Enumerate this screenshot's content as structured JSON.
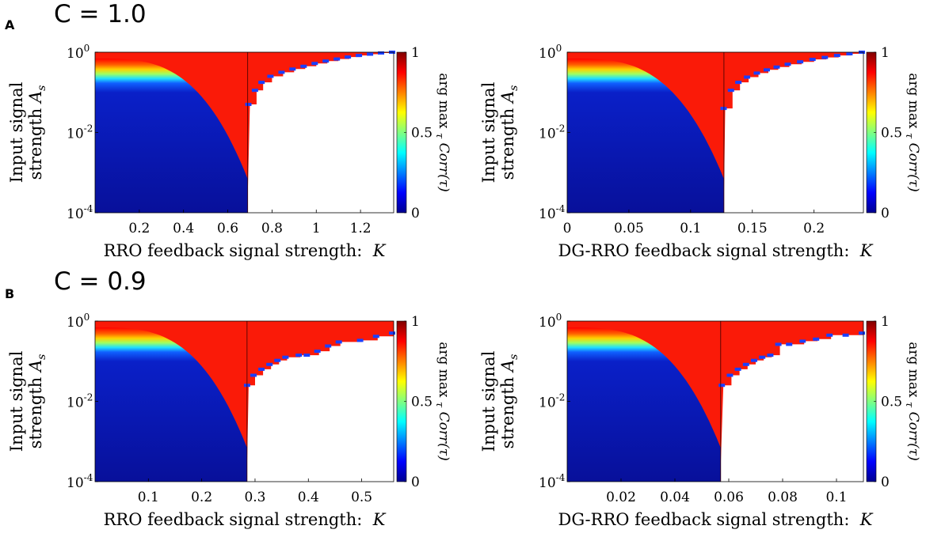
{
  "panels": [
    {
      "letter": "A",
      "condition": "C = 1.0"
    },
    {
      "letter": "B",
      "condition": "C = 0.9"
    }
  ],
  "colors": {
    "cmap": [
      "#00008f",
      "#0000ff",
      "#0080ff",
      "#00ffff",
      "#80ff80",
      "#ffff00",
      "#ff8000",
      "#ff0000",
      "#800000"
    ],
    "low": "#08109a",
    "high": "#fa1a08",
    "empty": "#ffffff"
  },
  "chart_data": [
    {
      "type": "heatmap",
      "title": "C = 1.0",
      "xlabel": "RRO feedback signal strength:",
      "xlabel_symbol": "K",
      "ylabel_line1": "Input signal",
      "ylabel_line2": "strength",
      "ylabel_symbol": "A",
      "ylabel_sub": "s",
      "colorbar_label": "arg max",
      "colorbar_sub": "τ",
      "colorbar_expr": "Corr(τ)",
      "xlim": [
        0,
        1.35
      ],
      "ylog_range": [
        -4,
        0
      ],
      "xticks": [
        0.2,
        0.4,
        0.6,
        0.8,
        1,
        1.2
      ],
      "xtick_labels": [
        "0.2",
        "0.4",
        "0.6",
        "0.8",
        "1",
        "1.2"
      ],
      "yticks": [
        0,
        -2,
        -4
      ],
      "ytick_base": "10",
      "ytick_exps": [
        "0",
        "-2",
        "-4"
      ],
      "colorbar_ticks": [
        1,
        0.5,
        0
      ],
      "colorbar_tick_labels": [
        "1",
        "0.5",
        "0"
      ],
      "critical_K": 0.69,
      "boundary_K": [
        0.7,
        0.73,
        0.76,
        0.8,
        0.85,
        0.9,
        0.95,
        1.0,
        1.05,
        1.1,
        1.15,
        1.2,
        1.25,
        1.3,
        1.35
      ],
      "boundary_log10A": [
        -1.3,
        -0.95,
        -0.75,
        -0.6,
        -0.5,
        -0.42,
        -0.35,
        -0.28,
        -0.22,
        -0.17,
        -0.12,
        -0.08,
        -0.05,
        -0.02,
        0
      ]
    },
    {
      "type": "heatmap",
      "title": "C = 1.0",
      "xlabel": "DG-RRO feedback signal strength:",
      "xlabel_symbol": "K",
      "ylabel_line1": "Input signal",
      "ylabel_line2": "strength",
      "ylabel_symbol": "A",
      "ylabel_sub": "s",
      "colorbar_label": "arg max",
      "colorbar_sub": "τ",
      "colorbar_expr": "Corr(τ)",
      "xlim": [
        0,
        0.24
      ],
      "ylog_range": [
        -4,
        0
      ],
      "xticks": [
        0,
        0.05,
        0.1,
        0.15,
        0.2
      ],
      "xtick_labels": [
        "0",
        "0.05",
        "0.1",
        "0.15",
        "0.2"
      ],
      "yticks": [
        0,
        -2,
        -4
      ],
      "ytick_base": "10",
      "ytick_exps": [
        "0",
        "-2",
        "-4"
      ],
      "colorbar_ticks": [
        1,
        0.5,
        0
      ],
      "colorbar_tick_labels": [
        "1",
        "0.5",
        "0"
      ],
      "critical_K": 0.127,
      "boundary_K": [
        0.128,
        0.134,
        0.14,
        0.147,
        0.155,
        0.163,
        0.171,
        0.18,
        0.19,
        0.2,
        0.21,
        0.22,
        0.23,
        0.24
      ],
      "boundary_log10A": [
        -1.4,
        -0.95,
        -0.75,
        -0.62,
        -0.52,
        -0.44,
        -0.37,
        -0.3,
        -0.24,
        -0.18,
        -0.13,
        -0.08,
        -0.04,
        0
      ]
    },
    {
      "type": "heatmap",
      "title": "C = 0.9",
      "xlabel": "RRO feedback signal strength:",
      "xlabel_symbol": "K",
      "ylabel_line1": "Input signal",
      "ylabel_line2": "strength",
      "ylabel_symbol": "A",
      "ylabel_sub": "s",
      "colorbar_label": "arg max",
      "colorbar_sub": "τ",
      "colorbar_expr": "Corr(τ)",
      "xlim": [
        0,
        0.56
      ],
      "ylog_range": [
        -4,
        0
      ],
      "xticks": [
        0.1,
        0.2,
        0.3,
        0.4,
        0.5
      ],
      "xtick_labels": [
        "0.1",
        "0.2",
        "0.3",
        "0.4",
        "0.5"
      ],
      "yticks": [
        0,
        -2,
        -4
      ],
      "ytick_base": "10",
      "ytick_exps": [
        "0",
        "-2",
        "-4"
      ],
      "colorbar_ticks": [
        1,
        0.5,
        0
      ],
      "colorbar_tick_labels": [
        "1",
        "0.5",
        "0"
      ],
      "critical_K": 0.285,
      "boundary_K": [
        0.288,
        0.3,
        0.315,
        0.33,
        0.345,
        0.36,
        0.385,
        0.4,
        0.42,
        0.44,
        0.46,
        0.5,
        0.53,
        0.56
      ],
      "boundary_log10A": [
        -1.6,
        -1.35,
        -1.2,
        -1.08,
        -0.98,
        -0.9,
        -0.85,
        -0.85,
        -0.75,
        -0.62,
        -0.52,
        -0.48,
        -0.38,
        -0.3
      ]
    },
    {
      "type": "heatmap",
      "title": "C = 0.9",
      "xlabel": "DG-RRO feedback signal strength:",
      "xlabel_symbol": "K",
      "ylabel_line1": "Input signal",
      "ylabel_line2": "strength",
      "ylabel_symbol": "A",
      "ylabel_sub": "s",
      "colorbar_label": "arg max",
      "colorbar_sub": "τ",
      "colorbar_expr": "Corr(τ)",
      "xlim": [
        0,
        0.11
      ],
      "ylog_range": [
        -4,
        0
      ],
      "xticks": [
        0.02,
        0.04,
        0.06,
        0.08,
        0.1
      ],
      "xtick_labels": [
        "0.02",
        "0.04",
        "0.06",
        "0.08",
        "0.1"
      ],
      "yticks": [
        0,
        -2,
        -4
      ],
      "ytick_base": "10",
      "ytick_exps": [
        "0",
        "-2",
        "-4"
      ],
      "colorbar_ticks": [
        1,
        0.5,
        0
      ],
      "colorbar_tick_labels": [
        "1",
        "0.5",
        "0"
      ],
      "critical_K": 0.057,
      "boundary_K": [
        0.058,
        0.061,
        0.064,
        0.067,
        0.07,
        0.073,
        0.076,
        0.079,
        0.083,
        0.088,
        0.093,
        0.098,
        0.104,
        0.11
      ],
      "boundary_log10A": [
        -1.6,
        -1.35,
        -1.2,
        -1.08,
        -0.98,
        -0.9,
        -0.85,
        -0.58,
        -0.58,
        -0.5,
        -0.45,
        -0.35,
        -0.35,
        -0.3
      ]
    }
  ]
}
